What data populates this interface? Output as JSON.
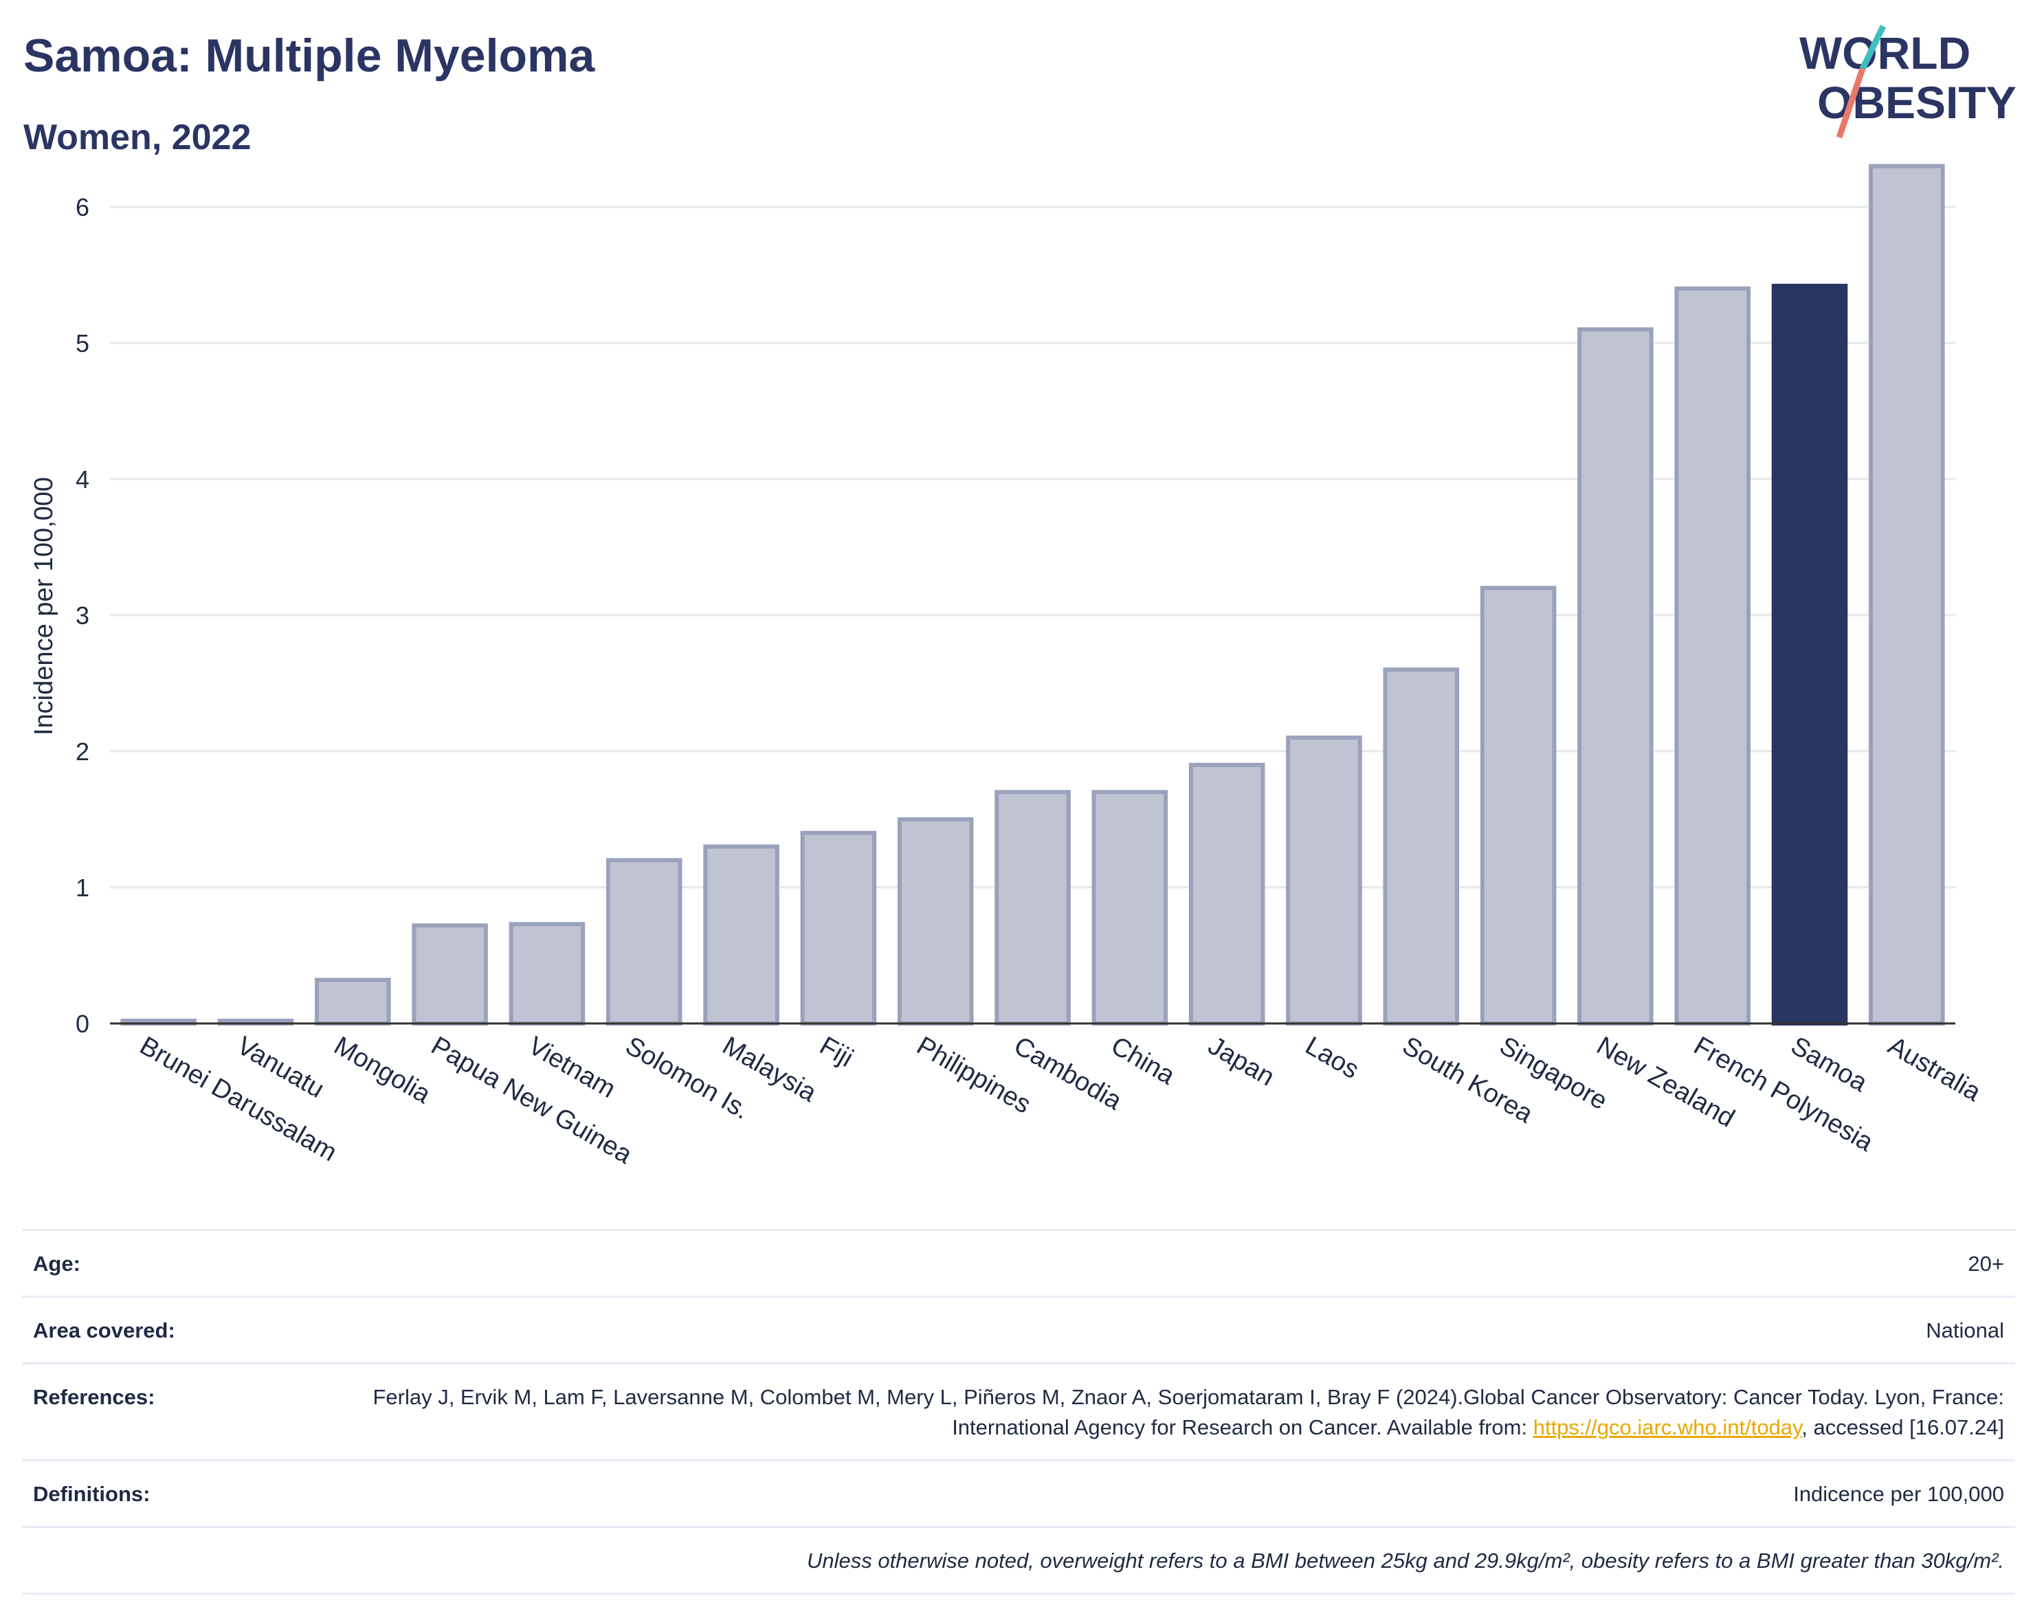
{
  "header": {
    "title": "Samoa: Multiple Myeloma",
    "subtitle": "Women, 2022"
  },
  "logo": {
    "line1": "WORLD",
    "line2": "OBESITY",
    "slash_colors": [
      "#3fbfbf",
      "#e87a6a"
    ]
  },
  "colors": {
    "bar": "#bfc3d2",
    "bar_stroke": "#9aa1bb",
    "highlight": "#2b3563",
    "grid": "#e6e8ef",
    "axis": "#333333"
  },
  "chart_data": {
    "type": "bar",
    "categories": [
      "Brunei Darussalam",
      "Vanuatu",
      "Mongolia",
      "Papua New Guinea",
      "Vietnam",
      "Solomon Is.",
      "Malaysia",
      "Fiji",
      "Philippines",
      "Cambodia",
      "China",
      "Japan",
      "Laos",
      "South Korea",
      "Singapore",
      "New Zealand",
      "French Polynesia",
      "Samoa",
      "Australia"
    ],
    "values": [
      0.02,
      0.02,
      0.32,
      0.72,
      0.73,
      1.2,
      1.3,
      1.4,
      1.5,
      1.7,
      1.7,
      1.9,
      2.1,
      2.6,
      3.2,
      5.1,
      5.4,
      5.42,
      6.3
    ],
    "highlight": "Samoa",
    "ylabel": "Incidence per 100,000",
    "ylim": [
      0,
      6.5
    ],
    "yticks": [
      0,
      1,
      2,
      3,
      4,
      5,
      6
    ],
    "grid": true
  },
  "meta": {
    "age_label": "Age:",
    "age_value": "20+",
    "area_label": "Area covered:",
    "area_value": "National",
    "ref_label": "References:",
    "ref_text_1": "Ferlay J, Ervik M, Lam F, Laversanne M, Colombet M, Mery L, Piñeros M, Znaor A, Soerjomataram I, Bray F (2024).Global Cancer Observatory: Cancer Today. Lyon, France: International Agency for Research on Cancer. Available from: ",
    "ref_link": "https://gco.iarc.who.int/today",
    "ref_text_2": ", accessed [16.07.24]",
    "def_label": "Definitions:",
    "def_value": "Indicence per 100,000",
    "note": "Unless otherwise noted, overweight refers to a BMI between 25kg and 29.9kg/m², obesity refers to a BMI greater than 30kg/m²."
  }
}
